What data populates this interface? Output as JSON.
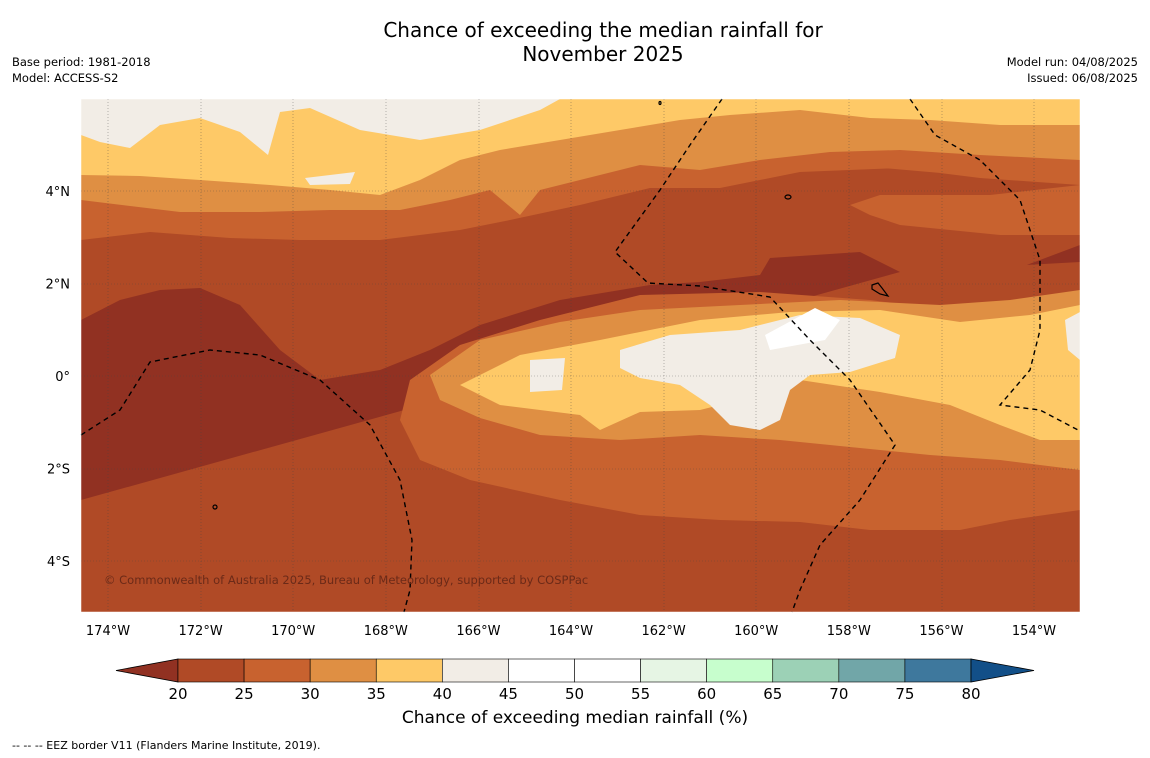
{
  "header": {
    "title_line1": "Chance of exceeding the median rainfall for",
    "title_line2": "November 2025",
    "base_period": "Base period: 1981-2018",
    "model": "Model: ACCESS-S2",
    "model_run": "Model run: 04/08/2025",
    "issued": "Issued: 06/08/2025"
  },
  "map": {
    "lon_ticks": [
      "174°W",
      "172°W",
      "170°W",
      "168°W",
      "166°W",
      "164°W",
      "162°W",
      "160°W",
      "158°W",
      "156°W",
      "154°W"
    ],
    "lat_ticks": [
      "4°N",
      "2°N",
      "0°",
      "2°S",
      "4°S"
    ],
    "copyright": "© Commonwealth of Australia 2025, Bureau of Meteorology, supported by COSPPac"
  },
  "colorbar": {
    "label": "Chance of exceeding median rainfall (%)",
    "ticks": [
      "20",
      "25",
      "30",
      "35",
      "40",
      "45",
      "50",
      "55",
      "60",
      "65",
      "70",
      "75",
      "80"
    ],
    "colors": [
      "#b04a26",
      "#c8622f",
      "#df8f43",
      "#fec967",
      "#f2ede6",
      "#ffffff",
      "#ffffff",
      "#e6f5e4",
      "#c7fecd",
      "#9cd1b6",
      "#71a6a8",
      "#3e789d"
    ],
    "under_color": "#913122",
    "over_color": "#124f88"
  },
  "legend": {
    "eez_note": "--  --  -- EEZ border V11 (Flanders Marine Institute, 2019)."
  }
}
